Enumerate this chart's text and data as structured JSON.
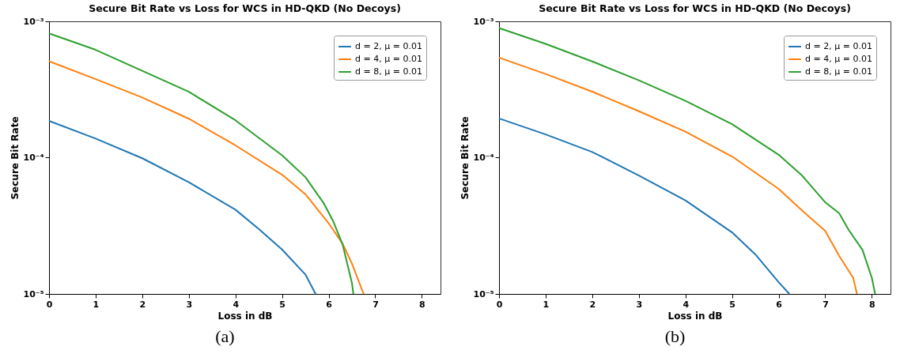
{
  "chart_data": [
    {
      "type": "line",
      "title": "Secure Bit Rate vs Loss for WCS in HD-QKD (No Decoys)",
      "xlabel": "Loss in dB",
      "ylabel": "Secure Bit Rate",
      "log": "y",
      "legend": "top right",
      "xlim": [
        0,
        8.4
      ],
      "xticks": [
        0,
        1,
        2,
        3,
        4,
        5,
        6,
        7,
        8
      ],
      "ylim": [
        1e-05,
        0.001
      ],
      "yticks": [
        {
          "value": 1e-05,
          "label": "10⁻⁵"
        },
        {
          "value": 0.0001,
          "label": "10⁻⁴"
        },
        {
          "value": 0.001,
          "label": "10⁻³"
        }
      ],
      "annotations": [
        "(a)"
      ],
      "series": [
        {
          "name": "d = 2, μ = 0.01",
          "color": "#1f77b4",
          "x": [
            0,
            1,
            2,
            3,
            4,
            4.5,
            5,
            5.5,
            5.72
          ],
          "values": [
            0.000186,
            0.000138,
            9.9e-05,
            6.6e-05,
            4.15e-05,
            3e-05,
            2.12e-05,
            1.39e-05,
            1e-05
          ]
        },
        {
          "name": "d = 4, μ = 0.01",
          "color": "#ff7f0e",
          "x": [
            0,
            1,
            2,
            3,
            4,
            5,
            5.5,
            6,
            6.3,
            6.5,
            6.75
          ],
          "values": [
            0.00051,
            0.000377,
            0.000276,
            0.000193,
            0.000123,
            7.5e-05,
            5.4e-05,
            3.3e-05,
            2.34e-05,
            1.67e-05,
            1e-05
          ]
        },
        {
          "name": "d = 8, μ = 0.01",
          "color": "#2ca02c",
          "x": [
            0,
            1,
            2,
            3,
            4,
            5,
            5.5,
            5.9,
            6.1,
            6.3,
            6.5,
            6.53
          ],
          "values": [
            0.000816,
            0.000618,
            0.000433,
            0.000304,
            0.000188,
            0.000104,
            7.2e-05,
            4.6e-05,
            3.4e-05,
            2.3e-05,
            1.2e-05,
            1e-05
          ]
        }
      ]
    },
    {
      "type": "line",
      "title": "Secure Bit Rate vs Loss for WCS in HD-QKD (No Decoys)",
      "xlabel": "Loss in dB",
      "ylabel": "Secure Bit Rate",
      "log": "y",
      "legend": "top right",
      "xlim": [
        0,
        8.4
      ],
      "xticks": [
        0,
        1,
        2,
        3,
        4,
        5,
        6,
        7,
        8
      ],
      "ylim": [
        1e-05,
        0.001
      ],
      "yticks": [
        {
          "value": 1e-05,
          "label": "10⁻⁵"
        },
        {
          "value": 0.0001,
          "label": "10⁻⁴"
        },
        {
          "value": 0.001,
          "label": "10⁻³"
        }
      ],
      "annotations": [
        "(b)"
      ],
      "series": [
        {
          "name": "d = 2, μ = 0.01",
          "color": "#1f77b4",
          "x": [
            0,
            1,
            2,
            3,
            4,
            5,
            5.5,
            6,
            6.23
          ],
          "values": [
            0.000194,
            0.000148,
            0.00011,
            7.4e-05,
            4.86e-05,
            2.83e-05,
            1.95e-05,
            1.22e-05,
            1e-05
          ]
        },
        {
          "name": "d = 4, μ = 0.01",
          "color": "#ff7f0e",
          "x": [
            0,
            1,
            2,
            3,
            4,
            5,
            6,
            6.5,
            7,
            7.3,
            7.6,
            7.68
          ],
          "values": [
            0.000542,
            0.000411,
            0.000305,
            0.000219,
            0.000155,
            0.000102,
            5.9e-05,
            4.1e-05,
            2.9e-05,
            1.9e-05,
            1.31e-05,
            1e-05
          ]
        },
        {
          "name": "d = 8, μ = 0.01",
          "color": "#2ca02c",
          "x": [
            0,
            1,
            2,
            3,
            4,
            5,
            6,
            6.5,
            7,
            7.3,
            7.5,
            7.8,
            8,
            8.07
          ],
          "values": [
            0.000893,
            0.000684,
            0.000508,
            0.000369,
            0.000261,
            0.000176,
            0.000105,
            7.4e-05,
            4.7e-05,
            3.9e-05,
            2.96e-05,
            2.1e-05,
            1.31e-05,
            1e-05
          ]
        }
      ]
    }
  ]
}
